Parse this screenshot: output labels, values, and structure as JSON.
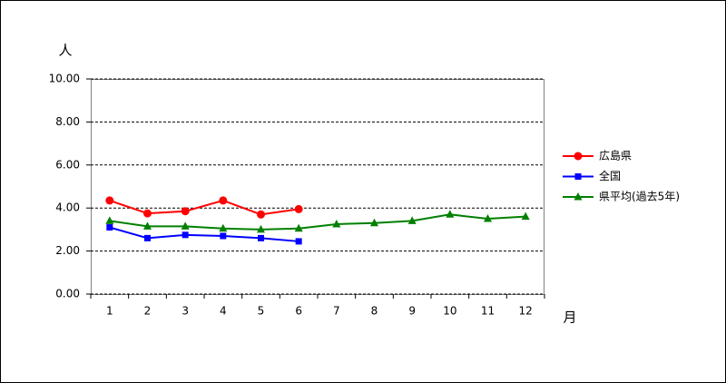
{
  "chart_data": {
    "type": "line",
    "y_label": "人",
    "x_label": "月",
    "categories": [
      "1",
      "2",
      "3",
      "4",
      "5",
      "6",
      "7",
      "8",
      "9",
      "10",
      "11",
      "12"
    ],
    "series": [
      {
        "name": "広島県",
        "color": "#ff0000",
        "marker": "circle",
        "values": [
          4.35,
          3.75,
          3.85,
          4.35,
          3.7,
          3.95,
          null,
          null,
          null,
          null,
          null,
          null
        ]
      },
      {
        "name": "全国",
        "color": "#0000ff",
        "marker": "square",
        "values": [
          3.1,
          2.6,
          2.75,
          2.7,
          2.6,
          2.45,
          null,
          null,
          null,
          null,
          null,
          null
        ]
      },
      {
        "name": "県平均(過去5年)",
        "color": "#008000",
        "marker": "triangle",
        "values": [
          3.4,
          3.15,
          3.15,
          3.05,
          3.0,
          3.05,
          3.25,
          3.3,
          3.4,
          3.7,
          3.5,
          3.6
        ]
      }
    ],
    "ylim": [
      0,
      10
    ],
    "yticks": [
      {
        "value": 0,
        "label": "0.00"
      },
      {
        "value": 2,
        "label": "2.00"
      },
      {
        "value": 4,
        "label": "4.00"
      },
      {
        "value": 6,
        "label": "6.00"
      },
      {
        "value": 8,
        "label": "8.00"
      },
      {
        "value": 10,
        "label": "10.00"
      }
    ],
    "grid": true,
    "legend": "right"
  }
}
